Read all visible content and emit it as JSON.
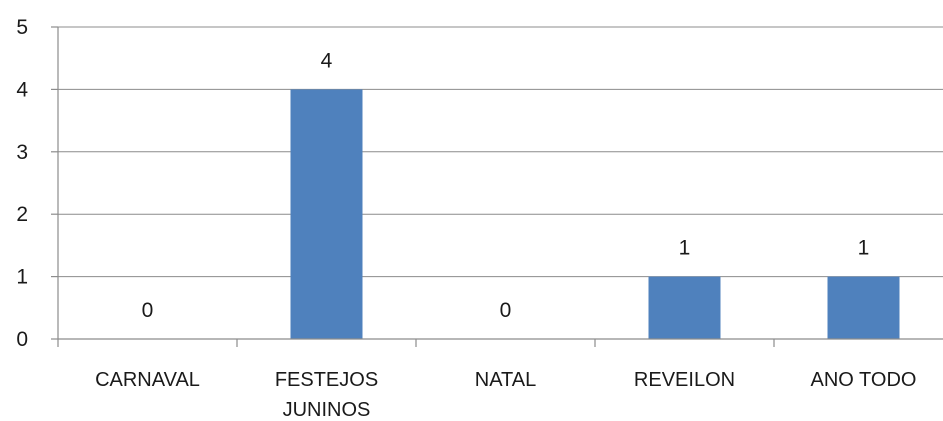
{
  "chart_data": {
    "type": "bar",
    "categories": [
      [
        "CARNAVAL"
      ],
      [
        "FESTEJOS",
        "JUNINOS"
      ],
      [
        "NATAL"
      ],
      [
        "REVEILON"
      ],
      [
        "ANO TODO"
      ]
    ],
    "values": [
      0,
      4,
      0,
      1,
      1
    ],
    "data_labels": [
      "0",
      "4",
      "0",
      "1",
      "1"
    ],
    "yticks": [
      0,
      1,
      2,
      3,
      4,
      5
    ],
    "ylim": [
      0,
      5
    ],
    "grid": true,
    "bar_color": "#4f81bd"
  }
}
